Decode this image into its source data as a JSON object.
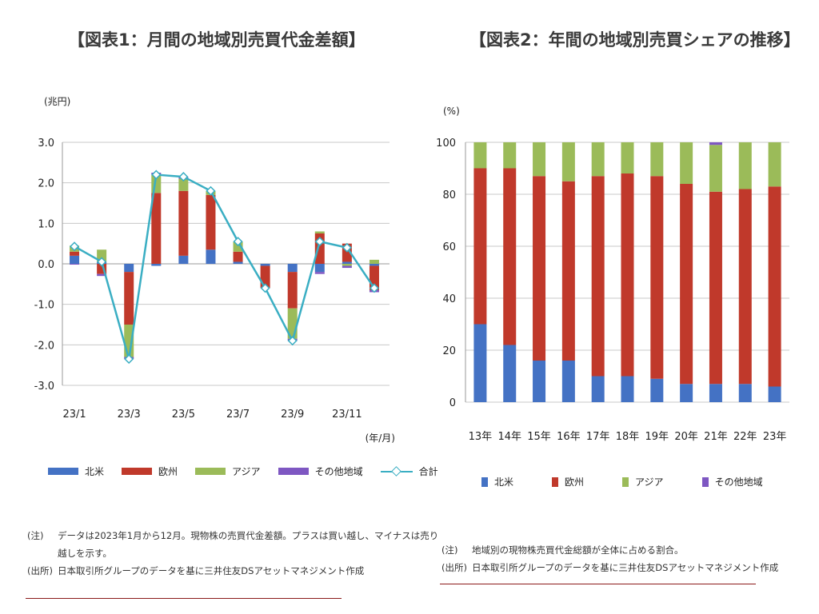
{
  "panel1": {
    "title": "【図表1：月間の地域別売買代金差額】",
    "unit": "(兆円)",
    "x_unit": "(年/月)",
    "legend": [
      {
        "label": "北米",
        "color": "#4472c4"
      },
      {
        "label": "欧州",
        "color": "#c0392b"
      },
      {
        "label": "アジア",
        "color": "#9bbb59"
      },
      {
        "label": "その他地域",
        "color": "#7e57c2"
      },
      {
        "label": "合計",
        "color": "#3aaec3"
      }
    ],
    "notes": [
      {
        "tag": "(注)",
        "text": "データは2023年1月から12月。現物株の売買代金差額。プラスは買い越し、マイナスは売り"
      },
      {
        "tag": "",
        "text": "越しを示す。"
      },
      {
        "tag": "(出所)",
        "text": "日本取引所グループのデータを基に三井住友DSアセットマネジメント作成"
      }
    ]
  },
  "panel2": {
    "title": "【図表2：年間の地域別売買シェアの推移】",
    "unit": "(%)",
    "legend": [
      {
        "label": "北米",
        "color": "#4472c4"
      },
      {
        "label": "欧州",
        "color": "#c0392b"
      },
      {
        "label": "アジア",
        "color": "#9bbb59"
      },
      {
        "label": "その他地域",
        "color": "#7e57c2"
      }
    ],
    "notes": [
      {
        "tag": "(注)",
        "text": "地域別の現物株売買代金総額が全体に占める割合。"
      },
      {
        "tag": "(出所)",
        "text": "日本取引所グループのデータを基に三井住友DSアセットマネジメント作成"
      }
    ]
  },
  "chart_data": [
    {
      "type": "bar",
      "stacked": true,
      "title": "【図表1：月間の地域別売買代金差額】",
      "ylabel": "(兆円)",
      "xlabel": "(年/月)",
      "ylim": [
        -3.0,
        3.0
      ],
      "yticks": [
        "3.0",
        "2.0",
        "1.0",
        "0.0",
        "-1.0",
        "-2.0",
        "-3.0"
      ],
      "categories": [
        "23/1",
        "23/2",
        "23/3",
        "23/4",
        "23/5",
        "23/6",
        "23/7",
        "23/8",
        "23/9",
        "23/10",
        "23/11",
        "23/12"
      ],
      "tick_labels": [
        "23/1",
        "",
        "23/3",
        "",
        "23/5",
        "",
        "23/7",
        "",
        "23/9",
        "",
        "23/11",
        ""
      ],
      "series": [
        {
          "name": "北米",
          "color": "#4472c4",
          "values": [
            0.2,
            0.05,
            -0.2,
            -0.05,
            0.2,
            0.35,
            0.05,
            -0.05,
            -0.2,
            -0.2,
            0.05,
            -0.05
          ]
        },
        {
          "name": "欧州",
          "color": "#c0392b",
          "values": [
            0.1,
            -0.25,
            -1.3,
            1.75,
            1.6,
            1.35,
            0.25,
            -0.55,
            -0.9,
            0.75,
            0.45,
            -0.6
          ]
        },
        {
          "name": "アジア",
          "color": "#9bbb59",
          "values": [
            0.15,
            0.3,
            -0.8,
            0.45,
            0.3,
            0.1,
            0.25,
            0.0,
            -0.75,
            0.05,
            -0.05,
            0.1
          ]
        },
        {
          "name": "その他地域",
          "color": "#7e57c2",
          "values": [
            -0.02,
            -0.05,
            -0.05,
            0.05,
            0.05,
            0.0,
            0.0,
            0.0,
            -0.05,
            -0.05,
            -0.05,
            -0.05
          ]
        },
        {
          "name": "合計",
          "type": "line",
          "color": "#3aaec3",
          "values": [
            0.43,
            0.05,
            -2.35,
            2.2,
            2.15,
            1.8,
            0.55,
            -0.6,
            -1.9,
            0.55,
            0.4,
            -0.6
          ]
        }
      ]
    },
    {
      "type": "bar",
      "stacked": true,
      "title": "【図表2：年間の地域別売買シェアの推移】",
      "ylabel": "(%)",
      "ylim": [
        0,
        100
      ],
      "yticks": [
        "100",
        "80",
        "60",
        "40",
        "20",
        "0"
      ],
      "categories": [
        "13年",
        "14年",
        "15年",
        "16年",
        "17年",
        "18年",
        "19年",
        "20年",
        "21年",
        "22年",
        "23年"
      ],
      "series": [
        {
          "name": "北米",
          "color": "#4472c4",
          "values": [
            30,
            22,
            16,
            16,
            10,
            10,
            9,
            7,
            7,
            7,
            6
          ]
        },
        {
          "name": "欧州",
          "color": "#c0392b",
          "values": [
            60,
            68,
            71,
            69,
            77,
            78,
            78,
            77,
            74,
            75,
            77
          ]
        },
        {
          "name": "アジア",
          "color": "#9bbb59",
          "values": [
            10,
            10,
            13,
            15,
            13,
            12,
            13,
            16,
            18,
            18,
            17
          ]
        },
        {
          "name": "その他地域",
          "color": "#7e57c2",
          "values": [
            0,
            0,
            0,
            0,
            0,
            0,
            0,
            0,
            1,
            0,
            0
          ]
        }
      ]
    }
  ]
}
